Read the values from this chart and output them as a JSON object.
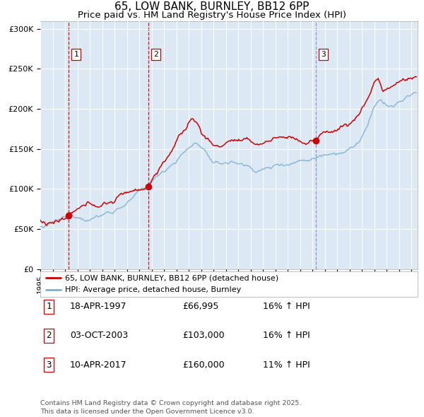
{
  "title": "65, LOW BANK, BURNLEY, BB12 6PP",
  "subtitle": "Price paid vs. HM Land Registry's House Price Index (HPI)",
  "ylim": [
    0,
    310000
  ],
  "yticks": [
    0,
    50000,
    100000,
    150000,
    200000,
    250000,
    300000
  ],
  "ytick_labels": [
    "£0",
    "£50K",
    "£100K",
    "£150K",
    "£200K",
    "£250K",
    "£300K"
  ],
  "sale1_date_num": 1997.3,
  "sale1_price": 66995,
  "sale2_date_num": 2003.75,
  "sale2_price": 103000,
  "sale3_date_num": 2017.28,
  "sale3_price": 160000,
  "legend_line1": "65, LOW BANK, BURNLEY, BB12 6PP (detached house)",
  "legend_line2": "HPI: Average price, detached house, Burnley",
  "table_rows": [
    [
      "1",
      "18-APR-1997",
      "£66,995",
      "16% ↑ HPI"
    ],
    [
      "2",
      "03-OCT-2003",
      "£103,000",
      "16% ↑ HPI"
    ],
    [
      "3",
      "10-APR-2017",
      "£160,000",
      "11% ↑ HPI"
    ]
  ],
  "footnote": "Contains HM Land Registry data © Crown copyright and database right 2025.\nThis data is licensed under the Open Government Licence v3.0.",
  "bg_color": "#dce9f5",
  "line_color_price": "#cc0000",
  "line_color_hpi": "#7bafd4",
  "grid_color": "#ffffff",
  "xstart": 1995.0,
  "xend": 2025.5
}
